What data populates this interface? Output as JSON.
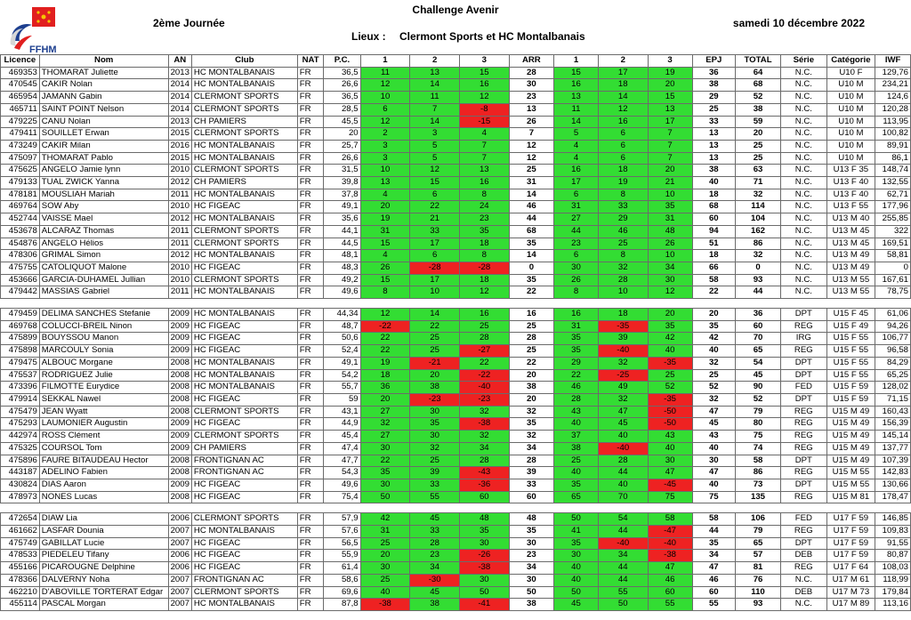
{
  "header": {
    "title": "Challenge Avenir",
    "day": "2ème Journée",
    "date": "samedi 10 décembre 2022",
    "venue_label": "Lieux :",
    "venue_value": "Clermont Sports et HC Montalbanais",
    "logo_text": "FFHM"
  },
  "colors": {
    "success": "#33dd33",
    "fail": "#ee2222"
  },
  "columns": [
    "Licence",
    "Nom",
    "AN",
    "Club",
    "NAT",
    "P.C.",
    "1",
    "2",
    "3",
    "ARR",
    "1",
    "2",
    "3",
    "EPJ",
    "TOTAL",
    "Série",
    "Catégorie",
    "IWF"
  ],
  "groups": [
    [
      [
        "469353",
        "THOMARAT Juliette",
        "2013",
        "HC MONTALBANAIS",
        "FR",
        "36,5",
        "11",
        "13",
        "15",
        "28",
        "15",
        "17",
        "19",
        "36",
        "64",
        "N.C.",
        "U10 F",
        "129,76"
      ],
      [
        "470545",
        "CAKIR Nolan",
        "2014",
        "HC MONTALBANAIS",
        "FR",
        "26,6",
        "12",
        "14",
        "16",
        "30",
        "16",
        "18",
        "20",
        "38",
        "68",
        "N.C.",
        "U10 M",
        "234,21"
      ],
      [
        "465954",
        "JAMANN Gabin",
        "2014",
        "CLERMONT SPORTS",
        "FR",
        "36,5",
        "10",
        "11",
        "12",
        "23",
        "13",
        "14",
        "15",
        "29",
        "52",
        "N.C.",
        "U10 M",
        "124,6"
      ],
      [
        "465711",
        "SAINT POINT Nelson",
        "2014",
        "CLERMONT SPORTS",
        "FR",
        "28,5",
        "6",
        "7",
        "-8",
        "13",
        "11",
        "12",
        "13",
        "25",
        "38",
        "N.C.",
        "U10 M",
        "120,28"
      ],
      [
        "479225",
        "CANU Nolan",
        "2013",
        "CH PAMIERS",
        "FR",
        "45,5",
        "12",
        "14",
        "-15",
        "26",
        "14",
        "16",
        "17",
        "33",
        "59",
        "N.C.",
        "U10 M",
        "113,95"
      ],
      [
        "479411",
        "SOUILLET Erwan",
        "2015",
        "CLERMONT SPORTS",
        "FR",
        "20",
        "2",
        "3",
        "4",
        "7",
        "5",
        "6",
        "7",
        "13",
        "20",
        "N.C.",
        "U10 M",
        "100,82"
      ],
      [
        "473249",
        "CAKIR Milan",
        "2016",
        "HC MONTALBANAIS",
        "FR",
        "25,7",
        "3",
        "5",
        "7",
        "12",
        "4",
        "6",
        "7",
        "13",
        "25",
        "N.C.",
        "U10 M",
        "89,91"
      ],
      [
        "475097",
        "THOMARAT Pablo",
        "2015",
        "HC MONTALBANAIS",
        "FR",
        "26,6",
        "3",
        "5",
        "7",
        "12",
        "4",
        "6",
        "7",
        "13",
        "25",
        "N.C.",
        "U10 M",
        "86,1"
      ],
      [
        "475625",
        "ANGELO Jamie lynn",
        "2010",
        "CLERMONT SPORTS",
        "FR",
        "31,5",
        "10",
        "12",
        "13",
        "25",
        "16",
        "18",
        "20",
        "38",
        "63",
        "N.C.",
        "U13 F 35",
        "148,74"
      ],
      [
        "479133",
        "TUAL ZWICK Yanna",
        "2012",
        "CH PAMIERS",
        "FR",
        "39,8",
        "13",
        "15",
        "16",
        "31",
        "17",
        "19",
        "21",
        "40",
        "71",
        "N.C.",
        "U13 F 40",
        "132,55"
      ],
      [
        "478181",
        "MOUSLIAH Mariah",
        "2011",
        "HC MONTALBANAIS",
        "FR",
        "37,8",
        "4",
        "6",
        "8",
        "14",
        "6",
        "8",
        "10",
        "18",
        "32",
        "N.C.",
        "U13 F 40",
        "62,71"
      ],
      [
        "469764",
        "SOW Aby",
        "2010",
        "HC FIGEAC",
        "FR",
        "49,1",
        "20",
        "22",
        "24",
        "46",
        "31",
        "33",
        "35",
        "68",
        "114",
        "N.C.",
        "U13 F 55",
        "177,96"
      ],
      [
        "452744",
        "VAISSE Mael",
        "2012",
        "HC MONTALBANAIS",
        "FR",
        "35,6",
        "19",
        "21",
        "23",
        "44",
        "27",
        "29",
        "31",
        "60",
        "104",
        "N.C.",
        "U13 M 40",
        "255,85"
      ],
      [
        "453678",
        "ALCARAZ Thomas",
        "2011",
        "CLERMONT SPORTS",
        "FR",
        "44,1",
        "31",
        "33",
        "35",
        "68",
        "44",
        "46",
        "48",
        "94",
        "162",
        "N.C.",
        "U13 M 45",
        "322"
      ],
      [
        "454876",
        "ANGELO Hélios",
        "2011",
        "CLERMONT SPORTS",
        "FR",
        "44,5",
        "15",
        "17",
        "18",
        "35",
        "23",
        "25",
        "26",
        "51",
        "86",
        "N.C.",
        "U13 M 45",
        "169,51"
      ],
      [
        "478306",
        "GRIMAL Simon",
        "2012",
        "HC MONTALBANAIS",
        "FR",
        "48,1",
        "4",
        "6",
        "8",
        "14",
        "6",
        "8",
        "10",
        "18",
        "32",
        "N.C.",
        "U13 M 49",
        "58,81"
      ],
      [
        "475755",
        "CATOLIQUOT Malone",
        "2010",
        "HC FIGEAC",
        "FR",
        "48,3",
        "26",
        "-28",
        "-28",
        "0",
        "30",
        "32",
        "34",
        "66",
        "0",
        "N.C.",
        "U13 M 49",
        "0"
      ],
      [
        "453666",
        "GARCIA-DUHAMEL Jullian",
        "2010",
        "CLERMONT SPORTS",
        "FR",
        "49,2",
        "15",
        "17",
        "18",
        "35",
        "26",
        "28",
        "30",
        "58",
        "93",
        "N.C.",
        "U13 M 55",
        "167,61"
      ],
      [
        "479442",
        "MASSIAS Gabriel",
        "2011",
        "HC MONTALBANAIS",
        "FR",
        "49,6",
        "8",
        "10",
        "12",
        "22",
        "8",
        "10",
        "12",
        "22",
        "44",
        "N.C.",
        "U13 M 55",
        "78,75"
      ]
    ],
    [
      [
        "479459",
        "DELIMA SANCHES Stefanie",
        "2009",
        "HC MONTALBANAIS",
        "FR",
        "44,34",
        "12",
        "14",
        "16",
        "16",
        "16",
        "18",
        "20",
        "20",
        "36",
        "DPT",
        "U15 F 45",
        "61,06"
      ],
      [
        "469768",
        "COLUCCI-BREIL Ninon",
        "2009",
        "HC FIGEAC",
        "FR",
        "48,7",
        "-22",
        "22",
        "25",
        "25",
        "31",
        "-35",
        "35",
        "35",
        "60",
        "REG",
        "U15 F 49",
        "94,26"
      ],
      [
        "475899",
        "BOUYSSOU Manon",
        "2009",
        "HC FIGEAC",
        "FR",
        "50,6",
        "22",
        "25",
        "28",
        "28",
        "35",
        "39",
        "42",
        "42",
        "70",
        "IRG",
        "U15 F 55",
        "106,77"
      ],
      [
        "475898",
        "MARCOULY Sonia",
        "2009",
        "HC FIGEAC",
        "FR",
        "52,4",
        "22",
        "25",
        "-27",
        "25",
        "35",
        "-40",
        "40",
        "40",
        "65",
        "REG",
        "U15 F 55",
        "96,58"
      ],
      [
        "479475",
        "ALBOUC Morgane",
        "2008",
        "HC MONTALBANAIS",
        "FR",
        "49,1",
        "19",
        "-21",
        "22",
        "22",
        "29",
        "32",
        "-35",
        "32",
        "54",
        "DPT",
        "U15 F 55",
        "84,29"
      ],
      [
        "475537",
        "RODRIGUEZ Julie",
        "2008",
        "HC MONTALBANAIS",
        "FR",
        "54,2",
        "18",
        "20",
        "-22",
        "20",
        "22",
        "-25",
        "25",
        "25",
        "45",
        "DPT",
        "U15 F 55",
        "65,25"
      ],
      [
        "473396",
        "FILMOTTE Eurydice",
        "2008",
        "HC MONTALBANAIS",
        "FR",
        "55,7",
        "36",
        "38",
        "-40",
        "38",
        "46",
        "49",
        "52",
        "52",
        "90",
        "FED",
        "U15 F 59",
        "128,02"
      ],
      [
        "479914",
        "SEKKAL Nawel",
        "2008",
        "HC FIGEAC",
        "FR",
        "59",
        "20",
        "-23",
        "-23",
        "20",
        "28",
        "32",
        "-35",
        "32",
        "52",
        "DPT",
        "U15 F 59",
        "71,15"
      ],
      [
        "475479",
        "JEAN Wyatt",
        "2008",
        "CLERMONT SPORTS",
        "FR",
        "43,1",
        "27",
        "30",
        "32",
        "32",
        "43",
        "47",
        "-50",
        "47",
        "79",
        "REG",
        "U15 M 49",
        "160,43"
      ],
      [
        "475293",
        "LAUMONIER Augustin",
        "2009",
        "HC FIGEAC",
        "FR",
        "44,9",
        "32",
        "35",
        "-38",
        "35",
        "40",
        "45",
        "-50",
        "45",
        "80",
        "REG",
        "U15 M 49",
        "156,39"
      ],
      [
        "442974",
        "ROSS Clément",
        "2009",
        "CLERMONT SPORTS",
        "FR",
        "45,4",
        "27",
        "30",
        "32",
        "32",
        "37",
        "40",
        "43",
        "43",
        "75",
        "REG",
        "U15 M 49",
        "145,14"
      ],
      [
        "475325",
        "COURSOL Tom",
        "2009",
        "CH PAMIERS",
        "FR",
        "47,4",
        "30",
        "32",
        "34",
        "34",
        "38",
        "-40",
        "40",
        "40",
        "74",
        "REG",
        "U15 M 49",
        "137,77"
      ],
      [
        "475896",
        "FAURE BITAUDEAU Hector",
        "2008",
        "FRONTIGNAN AC",
        "FR",
        "47,7",
        "22",
        "25",
        "28",
        "28",
        "25",
        "28",
        "30",
        "30",
        "58",
        "DPT",
        "U15 M 49",
        "107,39"
      ],
      [
        "443187",
        "ADELINO Fabien",
        "2008",
        "FRONTIGNAN AC",
        "FR",
        "54,3",
        "35",
        "39",
        "-43",
        "39",
        "40",
        "44",
        "47",
        "47",
        "86",
        "REG",
        "U15 M 55",
        "142,83"
      ],
      [
        "430824",
        "DIAS Aaron",
        "2009",
        "HC FIGEAC",
        "FR",
        "49,6",
        "30",
        "33",
        "-36",
        "33",
        "35",
        "40",
        "-45",
        "40",
        "73",
        "DPT",
        "U15 M 55",
        "130,66"
      ],
      [
        "478973",
        "NONES Lucas",
        "2008",
        "HC FIGEAC",
        "FR",
        "75,4",
        "50",
        "55",
        "60",
        "60",
        "65",
        "70",
        "75",
        "75",
        "135",
        "REG",
        "U15 M 81",
        "178,47"
      ]
    ],
    [
      [
        "472654",
        "DIAW Lia",
        "2006",
        "CLERMONT SPORTS",
        "FR",
        "57,9",
        "42",
        "45",
        "48",
        "48",
        "50",
        "54",
        "58",
        "58",
        "106",
        "FED",
        "U17 F 59",
        "146,85"
      ],
      [
        "461662",
        "LASFAR Dounia",
        "2007",
        "HC MONTALBANAIS",
        "FR",
        "57,6",
        "31",
        "33",
        "35",
        "35",
        "41",
        "44",
        "-47",
        "44",
        "79",
        "REG",
        "U17 F 59",
        "109,83"
      ],
      [
        "475749",
        "GABILLAT Lucie",
        "2007",
        "HC FIGEAC",
        "FR",
        "56,5",
        "25",
        "28",
        "30",
        "30",
        "35",
        "-40",
        "-40",
        "35",
        "65",
        "DPT",
        "U17 F 59",
        "91,55"
      ],
      [
        "478533",
        "PIEDELEU Tifany",
        "2006",
        "HC FIGEAC",
        "FR",
        "55,9",
        "20",
        "23",
        "-26",
        "23",
        "30",
        "34",
        "-38",
        "34",
        "57",
        "DEB",
        "U17 F 59",
        "80,87"
      ],
      [
        "455166",
        "PICAROUGNE Delphine",
        "2006",
        "HC FIGEAC",
        "FR",
        "61,4",
        "30",
        "34",
        "-38",
        "34",
        "40",
        "44",
        "47",
        "47",
        "81",
        "REG",
        "U17 F 64",
        "108,03"
      ],
      [
        "478366",
        "DALVERNY Noha",
        "2007",
        "FRONTIGNAN AC",
        "FR",
        "58,6",
        "25",
        "-30",
        "30",
        "30",
        "40",
        "44",
        "46",
        "46",
        "76",
        "N.C.",
        "U17 M 61",
        "118,99"
      ],
      [
        "462210",
        "D'ABOVILLE TORTERAT Edgar",
        "2007",
        "CLERMONT SPORTS",
        "FR",
        "69,6",
        "40",
        "45",
        "50",
        "50",
        "50",
        "55",
        "60",
        "60",
        "110",
        "DEB",
        "U17 M 73",
        "179,84"
      ],
      [
        "455114",
        "PASCAL Morgan",
        "2007",
        "HC MONTALBANAIS",
        "FR",
        "87,8",
        "-38",
        "38",
        "-41",
        "38",
        "45",
        "50",
        "55",
        "55",
        "93",
        "N.C.",
        "U17 M 89",
        "113,16"
      ]
    ]
  ]
}
